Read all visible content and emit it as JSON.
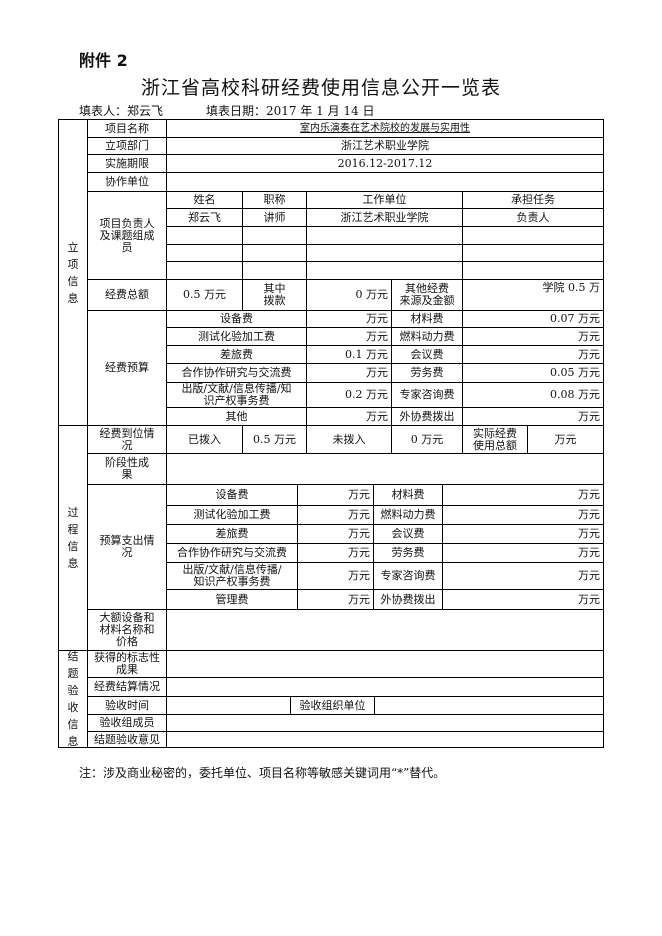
{
  "header": {
    "attachment": "附件 2",
    "title": "浙江省高校科研经费使用信息公开一览表",
    "filler_label": "填表人：郑云飞",
    "date_label": "填表日期：2017 年 1 月 14 日"
  },
  "sections": {
    "project": "立\n项\n信\n息",
    "process": "过\n程\n信\n息",
    "closing": "结\n题\n验\n收\n信\n息"
  },
  "project": {
    "name_label": "项目名称",
    "name": "室内乐演奏在艺术院校的发展与实用性",
    "dept_label": "立项部门",
    "dept": "浙江艺术职业学院",
    "period_label": "实施期限",
    "period": "2016.12-2017.12",
    "coop_label": "协作单位",
    "coop": "",
    "members_label": "项目负责人\n及课题组成\n员",
    "members_headers": [
      "姓名",
      "职称",
      "工作单位",
      "承担任务"
    ],
    "members": [
      [
        "郑云飞",
        "讲师",
        "浙江艺术职业学院",
        "负责人"
      ]
    ],
    "total_label": "经费总额",
    "total": "0.5 万元",
    "allocated_label": "其中\n拨款",
    "allocated": "0 万元",
    "other_label": "其他经费\n来源及金额",
    "other": "学院 0.5 万",
    "budget_label": "经费预算",
    "budget": [
      [
        "设备费",
        "万元",
        "材料费",
        "0.07 万元"
      ],
      [
        "测试化验加工费",
        "万元",
        "燃料动力费",
        "万元"
      ],
      [
        "差旅费",
        "0.1 万元",
        "会议费",
        "万元"
      ],
      [
        "合作协作研究与交流费",
        "万元",
        "劳务费",
        "0.05 万元"
      ],
      [
        "出版/文献/信息传播/知\n识产权事务费",
        "0.2 万元",
        "专家咨询费",
        "0.08 万元"
      ],
      [
        "其他",
        "万元",
        "外协费拨出",
        "万元"
      ]
    ]
  },
  "process": {
    "funding_label": "经费到位情\n况",
    "received_label": "已拨入",
    "received": "0.5 万元",
    "pending_label": "未拨入",
    "pending": "0 万元",
    "actual_label": "实际经费\n使用总额",
    "actual": "万元",
    "stage_label": "阶段性成\n果",
    "spend_label": "预算支出情\n况",
    "spend": [
      [
        "设备费",
        "万元",
        "材料费",
        "万元"
      ],
      [
        "测试化验加工费",
        "万元",
        "燃料动力费",
        "万元"
      ],
      [
        "差旅费",
        "万元",
        "会议费",
        "万元"
      ],
      [
        "合作协作研究与交流费",
        "万元",
        "劳务费",
        "万元"
      ],
      [
        "出版/文献/信息传播/\n知识产权事务费",
        "万元",
        "专家咨询费",
        "万元"
      ],
      [
        "管理费",
        "万元",
        "外协费拨出",
        "万元"
      ]
    ],
    "equipment_label": "大额设备和\n材料名称和\n价格"
  },
  "closing": {
    "achievement_label": "获得的标志性\n成果",
    "settlement_label": "经费结算情况",
    "time_label": "验收时间",
    "org_label": "验收组织单位",
    "members_label": "验收组成员",
    "opinion_label": "结题验收意见"
  },
  "note": "注：涉及商业秘密的，委托单位、项目名称等敏感关键词用“*”替代。"
}
